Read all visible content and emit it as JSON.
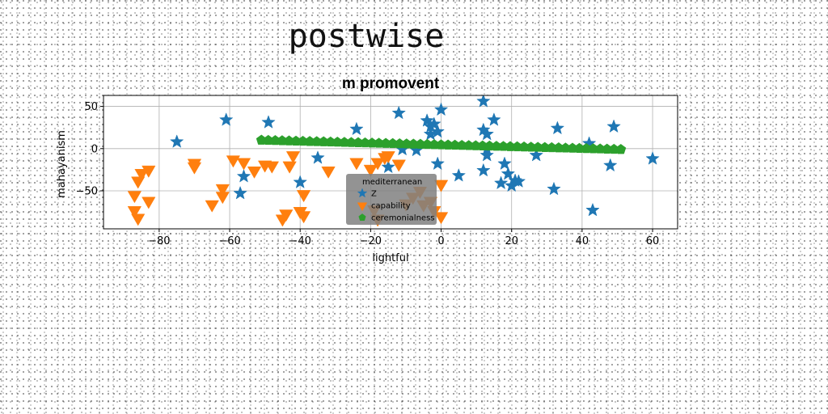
{
  "page": {
    "title": "postwise"
  },
  "chart_data": {
    "type": "scatter",
    "title": "m promovent",
    "xlabel": "lightful",
    "ylabel": "mahayanism",
    "xlim": [
      -95.8,
      67.1
    ],
    "ylim": [
      -95,
      63
    ],
    "xticks": [
      -80,
      -60,
      -40,
      -20,
      0,
      20,
      40,
      60
    ],
    "yticks": [
      -50,
      0,
      50
    ],
    "grid": true,
    "legend": {
      "title": "mediterranean",
      "position": "lower-center"
    },
    "colors": {
      "Z": "#1f77b4",
      "capability": "#ff7f0e",
      "ceremonialness": "#2ca02c"
    },
    "series": [
      {
        "name": "Z",
        "marker": "star",
        "points": [
          [
            -75,
            8
          ],
          [
            -61,
            34
          ],
          [
            -57,
            -53
          ],
          [
            -56,
            -33
          ],
          [
            -49,
            31
          ],
          [
            -40,
            -40
          ],
          [
            -35,
            -11
          ],
          [
            -24,
            23
          ],
          [
            -15,
            -22
          ],
          [
            -12,
            42
          ],
          [
            -11,
            -1
          ],
          [
            -7,
            -2
          ],
          [
            -4,
            33
          ],
          [
            -3,
            26
          ],
          [
            -3,
            17
          ],
          [
            -2,
            29
          ],
          [
            -1,
            -18
          ],
          [
            -1,
            20
          ],
          [
            0,
            46
          ],
          [
            5,
            -32
          ],
          [
            12,
            56
          ],
          [
            12,
            22
          ],
          [
            12,
            -26
          ],
          [
            13,
            -8
          ],
          [
            13,
            -1
          ],
          [
            13,
            17
          ],
          [
            15,
            34
          ],
          [
            17,
            -41
          ],
          [
            18,
            -18
          ],
          [
            19,
            -30
          ],
          [
            20,
            -44
          ],
          [
            21,
            -38
          ],
          [
            22,
            -39
          ],
          [
            27,
            -8
          ],
          [
            32,
            -48
          ],
          [
            33,
            24
          ],
          [
            42,
            6
          ],
          [
            43,
            -73
          ],
          [
            48,
            -20
          ],
          [
            49,
            26
          ],
          [
            60,
            -12
          ]
        ]
      },
      {
        "name": "capability",
        "marker": "triangle-down",
        "points": [
          [
            -87,
            -73
          ],
          [
            -87,
            -55
          ],
          [
            -86,
            -38
          ],
          [
            -86,
            -82
          ],
          [
            -85,
            -29
          ],
          [
            -83,
            -62
          ],
          [
            -83,
            -25
          ],
          [
            -70,
            -17
          ],
          [
            -70,
            -21
          ],
          [
            -65,
            -66
          ],
          [
            -62,
            -47
          ],
          [
            -62,
            -56
          ],
          [
            -59,
            -13
          ],
          [
            -56,
            -16
          ],
          [
            -53,
            -26
          ],
          [
            -50,
            -19
          ],
          [
            -48,
            -20
          ],
          [
            -45,
            -83
          ],
          [
            -44,
            -77
          ],
          [
            -43,
            -20
          ],
          [
            -42,
            -8
          ],
          [
            -40,
            -74
          ],
          [
            -39,
            -79
          ],
          [
            -39,
            -54
          ],
          [
            -32,
            -26
          ],
          [
            -24,
            -16
          ],
          [
            -20,
            -24
          ],
          [
            -19,
            -72
          ],
          [
            -18,
            -83
          ],
          [
            -18,
            -16
          ],
          [
            -16,
            -10
          ],
          [
            -15,
            -8
          ],
          [
            -12,
            -18
          ],
          [
            -10,
            -65
          ],
          [
            -8,
            -57
          ],
          [
            -6,
            -50
          ],
          [
            -5,
            -66
          ],
          [
            -3,
            -62
          ],
          [
            -2,
            -73
          ],
          [
            0,
            -42
          ],
          [
            0,
            -80
          ]
        ]
      },
      {
        "name": "ceremonialness",
        "marker": "pentagon",
        "x_range": [
          -51,
          51
        ],
        "n": 53,
        "y_start": 10,
        "y_end": -1
      }
    ]
  }
}
